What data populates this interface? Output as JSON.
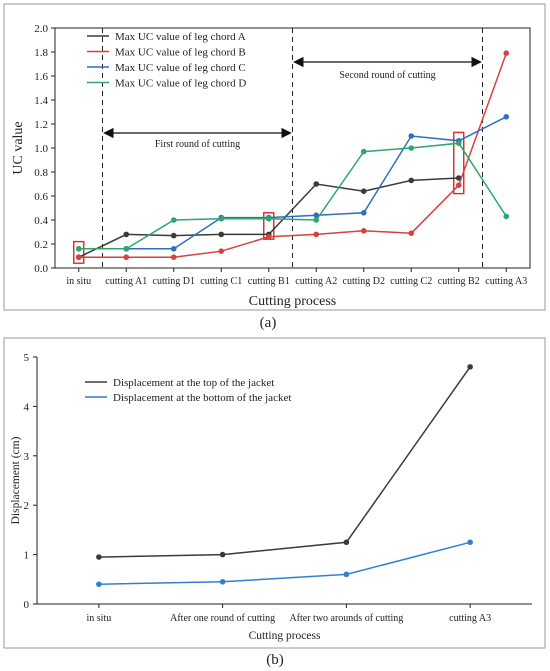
{
  "chart_data": [
    {
      "type": "line",
      "panel_label": "(a)",
      "categories": [
        "in situ",
        "cutting A1",
        "cutting D1",
        "cutting C1",
        "cutting B1",
        "cutting A2",
        "cutting D2",
        "cutting C2",
        "cutting B2",
        "cutting A3"
      ],
      "xlabel": "Cutting process",
      "ylabel": "UC value",
      "ylim": [
        0,
        2.0
      ],
      "yticks": [
        "0.0",
        "0.2",
        "0.4",
        "0.6",
        "0.8",
        "1.0",
        "1.2",
        "1.4",
        "1.6",
        "1.8",
        "2.0"
      ],
      "legend_position": "top-left",
      "series": [
        {
          "name": "Max UC value of leg chord A",
          "color": "#3a3a3a",
          "values": [
            0.09,
            0.28,
            0.27,
            0.28,
            0.28,
            0.7,
            0.64,
            0.73,
            0.75,
            null
          ]
        },
        {
          "name": "Max UC value of leg chord B",
          "color": "#d94040",
          "values": [
            0.09,
            0.09,
            0.09,
            0.14,
            0.26,
            0.28,
            0.31,
            0.29,
            0.69,
            1.79
          ]
        },
        {
          "name": "Max UC value of leg chord C",
          "color": "#2f6fc0",
          "values": [
            0.16,
            0.16,
            0.16,
            0.42,
            0.42,
            0.44,
            0.46,
            1.1,
            1.06,
            1.26
          ]
        },
        {
          "name": "Max UC value of leg chord D",
          "color": "#2ca86a",
          "values": [
            0.16,
            0.16,
            0.4,
            0.41,
            0.41,
            0.4,
            0.97,
            1.0,
            1.04,
            0.43
          ]
        }
      ],
      "annotations": [
        {
          "text": "First round of cutting",
          "from": 0.5,
          "to": 4.5
        },
        {
          "text": "Second round of cutting",
          "from": 4.5,
          "to": 8.5
        }
      ],
      "highlight_boxes": [
        0,
        4,
        8
      ]
    },
    {
      "type": "line",
      "panel_label": "(b)",
      "categories": [
        "in situ",
        "After one round of cutting",
        "After two arounds of cutting",
        "cutting A3"
      ],
      "xlabel": "Cutting process",
      "ylabel": "Displacement (cm)",
      "ylim": [
        0,
        5
      ],
      "yticks": [
        "0",
        "1",
        "2",
        "3",
        "4",
        "5"
      ],
      "legend_position": "top-left",
      "series": [
        {
          "name": "Displacement at the top of the jacket",
          "color": "#3a3a3a",
          "values": [
            0.95,
            1.0,
            1.25,
            4.8
          ]
        },
        {
          "name": "Displacement at the bottom of the jacket",
          "color": "#2f7fd4",
          "values": [
            0.4,
            0.45,
            0.6,
            1.25
          ]
        }
      ]
    }
  ]
}
